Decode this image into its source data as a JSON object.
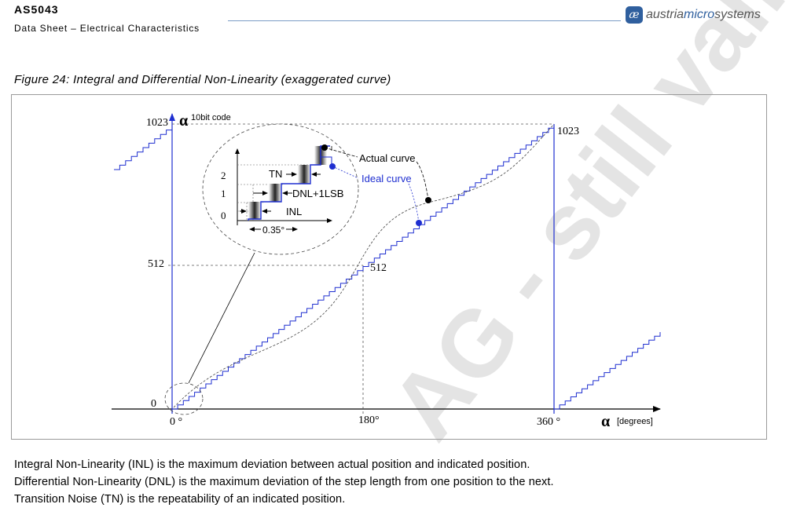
{
  "header": {
    "doc_id": "AS5043",
    "subtitle": "Data Sheet – Electrical Characteristics",
    "logo_mark": "æ",
    "logo_pre": "austria",
    "logo_accent": "micro",
    "logo_post": "systems"
  },
  "figure": {
    "caption": "Figure 24: Integral and Differential Non-Linearity (exaggerated curve)",
    "y_axis_symbol": "α",
    "y_axis_label": "10bit code",
    "x_axis_symbol": "α",
    "x_axis_label": "[degrees]",
    "y_ticks": [
      "1023",
      "512",
      "0"
    ],
    "x_ticks": [
      "0 °",
      "180°",
      "360 °"
    ],
    "label_1023_right": "1023",
    "label_512_center": "512",
    "actual_curve_label": "Actual curve",
    "ideal_curve_label": "Ideal curve",
    "inset_levels": [
      "2",
      "1",
      "0"
    ],
    "inset_labels": {
      "tn": "TN",
      "dnl": "DNL+1LSB",
      "inl": "INL",
      "step": "0.35°"
    },
    "colors": {
      "ideal": "#1f2fd0",
      "axis": "#000000",
      "guide": "#555555"
    }
  },
  "body": [
    "Integral Non-Linearity (INL) is the maximum deviation between actual position and indicated position.",
    "Differential Non-Linearity (DNL) is the maximum deviation of the step length from one position to the next.",
    "Transition Noise (TN) is the repeatability of an indicated position."
  ],
  "watermark": "AG  - still valid"
}
